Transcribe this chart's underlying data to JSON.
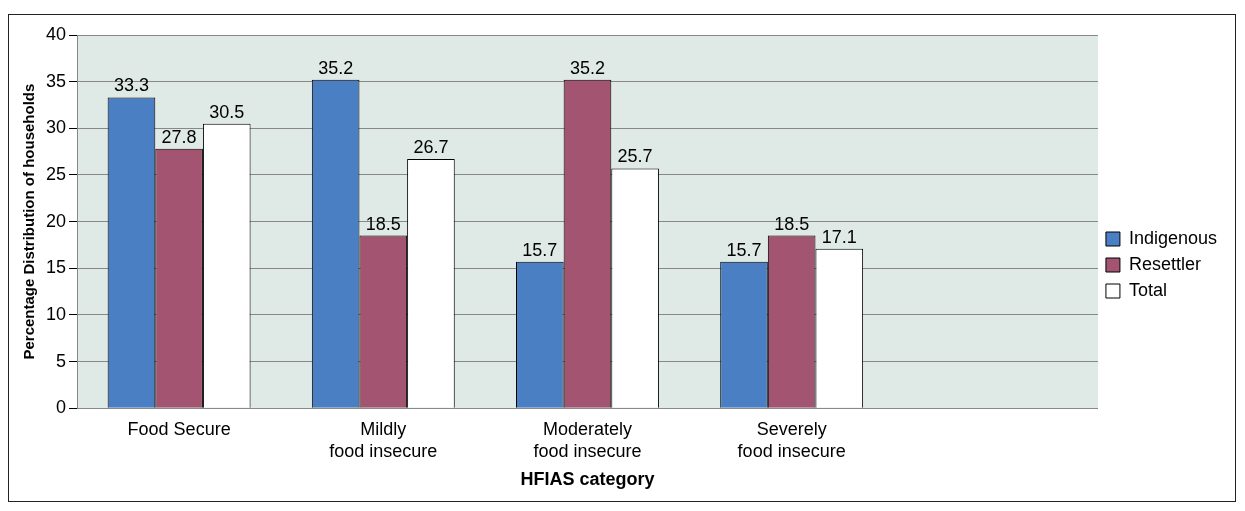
{
  "chart_data": {
    "type": "bar",
    "xlabel": "HFIAS category",
    "ylabel": "Percentage Distribution of households",
    "categories": [
      "Food Secure",
      "Mildly food insecure",
      "Moderately food insecure",
      "Severely food insecure",
      null
    ],
    "series": [
      {
        "name": "Indigenous",
        "color": "#4a7fc4",
        "values": [
          33.3,
          35.2,
          15.7,
          15.7,
          null
        ]
      },
      {
        "name": "Resettler",
        "color": "#a35470",
        "values": [
          27.8,
          18.5,
          35.2,
          18.5,
          null
        ]
      },
      {
        "name": "Total",
        "color": "#ffffff",
        "values": [
          30.5,
          26.7,
          25.7,
          17.1,
          null
        ]
      }
    ],
    "ylim": [
      0,
      40
    ],
    "yticks": [
      0,
      5,
      10,
      15,
      20,
      25,
      30,
      35,
      40
    ],
    "grid": "y",
    "legend": "right",
    "data_labels": true
  }
}
